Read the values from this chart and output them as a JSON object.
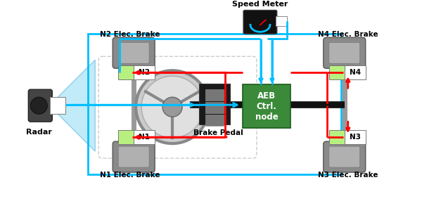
{
  "background_color": "#ffffff",
  "fig_width": 6.0,
  "fig_height": 2.93,
  "dpi": 100,
  "speed_meter_text": "Speed Meter",
  "radar_label": "Radar",
  "brake_pedal_label": "Brake Pedal",
  "aeb_label": "AEB\nCtrl.\nnode",
  "blue_line_color": "#00bfff",
  "red_line_color": "#ff0000",
  "bus_color": "#111111",
  "aeb_color": "#3a8a3a",
  "node_fill": "#b8f080",
  "tire_outer": "#888888",
  "tire_inner": "#aaaaaa",
  "axle_color": "#999999"
}
